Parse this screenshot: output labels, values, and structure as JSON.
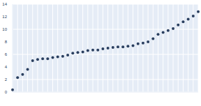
{
  "chart_data": {
    "type": "scatter",
    "categories": [
      null,
      null,
      null,
      null,
      null,
      null,
      null,
      null,
      null,
      null,
      null,
      null,
      null,
      null,
      null,
      null,
      null,
      null,
      null,
      null,
      null,
      null,
      null,
      null,
      null,
      null,
      null,
      null,
      null,
      null,
      null,
      null,
      null,
      null,
      null,
      null,
      null,
      null
    ],
    "values": [
      0.35,
      2.3,
      2.8,
      3.6,
      5.0,
      5.2,
      5.3,
      5.3,
      5.5,
      5.6,
      5.7,
      5.9,
      6.2,
      6.3,
      6.4,
      6.6,
      6.7,
      6.7,
      6.9,
      7.0,
      7.1,
      7.2,
      7.2,
      7.3,
      7.4,
      7.7,
      7.8,
      8.0,
      8.5,
      9.2,
      9.5,
      9.8,
      10.1,
      10.7,
      11.2,
      11.6,
      12.1,
      12.8
    ],
    "color": "#2a3f5f",
    "marker": "circle",
    "ylim": [
      0,
      14
    ],
    "yticks": [
      0,
      2,
      4,
      6,
      8,
      10,
      12,
      14
    ],
    "grid": true
  }
}
